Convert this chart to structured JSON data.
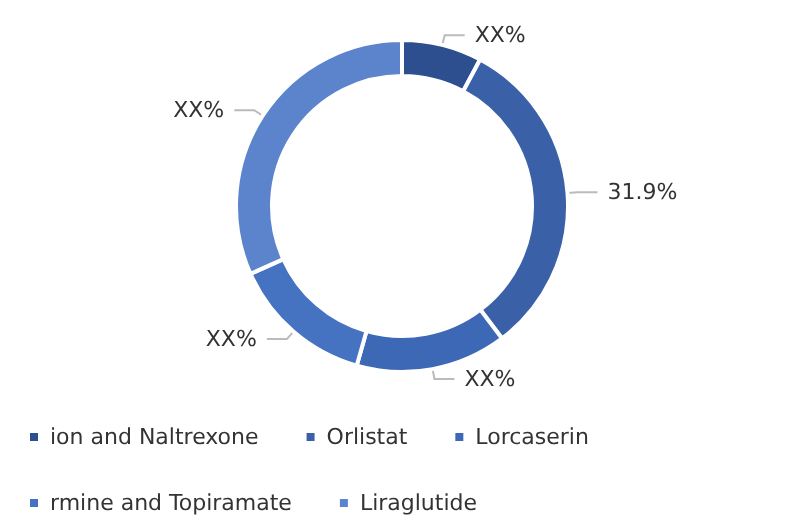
{
  "chart_data": {
    "type": "donut",
    "categories": [
      "ion and Naltrexone",
      "Orlistat",
      "Lorcaserin",
      "rmine and Topiramate",
      "Liraglutide"
    ],
    "values": [
      7.8,
      31.9,
      14.7,
      13.9,
      31.7
    ],
    "value_labels": [
      "XX%",
      "31.9%",
      "XX%",
      "XX%",
      "XX%"
    ],
    "colors": [
      "#2e4f8f",
      "#3a60a8",
      "#3d68b5",
      "#4573c1",
      "#5b84cc"
    ],
    "legend": "bottom"
  }
}
